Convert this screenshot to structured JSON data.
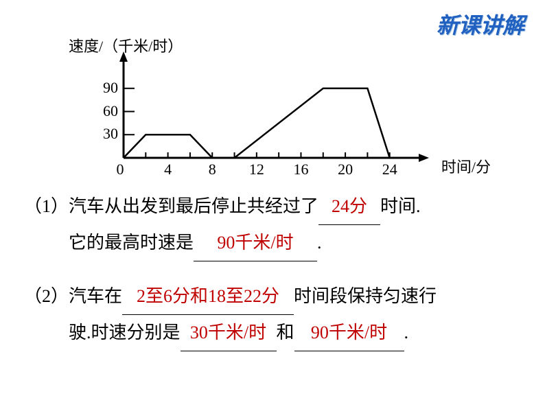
{
  "header": {
    "title": "新课讲解"
  },
  "chart": {
    "y_axis_label": "速度/（千米/时）",
    "x_axis_label": "时间/分",
    "y_ticks": [
      30,
      60,
      90
    ],
    "x_ticks": [
      0,
      4,
      8,
      12,
      16,
      20,
      24
    ],
    "y_max": 120,
    "x_max": 26,
    "points": [
      {
        "x": 0,
        "y": 0
      },
      {
        "x": 2,
        "y": 30
      },
      {
        "x": 6,
        "y": 30
      },
      {
        "x": 8,
        "y": 0
      },
      {
        "x": 10,
        "y": 0
      },
      {
        "x": 18,
        "y": 90
      },
      {
        "x": 22,
        "y": 90
      },
      {
        "x": 24,
        "y": 0
      }
    ],
    "line_width": 2.5,
    "axis_width": 3,
    "tick_length": 8
  },
  "questions": {
    "q1": {
      "line1_a": "（1）汽车从出发到最后停止共经过了",
      "line1_blank": "24分",
      "line1_b": "时间.",
      "line2_a": "它的最高时速是",
      "line2_blank": "90千米/时",
      "line2_b": "."
    },
    "q2": {
      "line1_a": "（2）汽车在",
      "line1_blank": "2至6分和18至22分",
      "line1_b": "时间段保持匀速行",
      "line2_a": "驶.时速分别是",
      "line2_blank1": "30千米/时",
      "line2_mid": "和",
      "line2_blank2": "90千米/时",
      "line2_b": "."
    }
  }
}
